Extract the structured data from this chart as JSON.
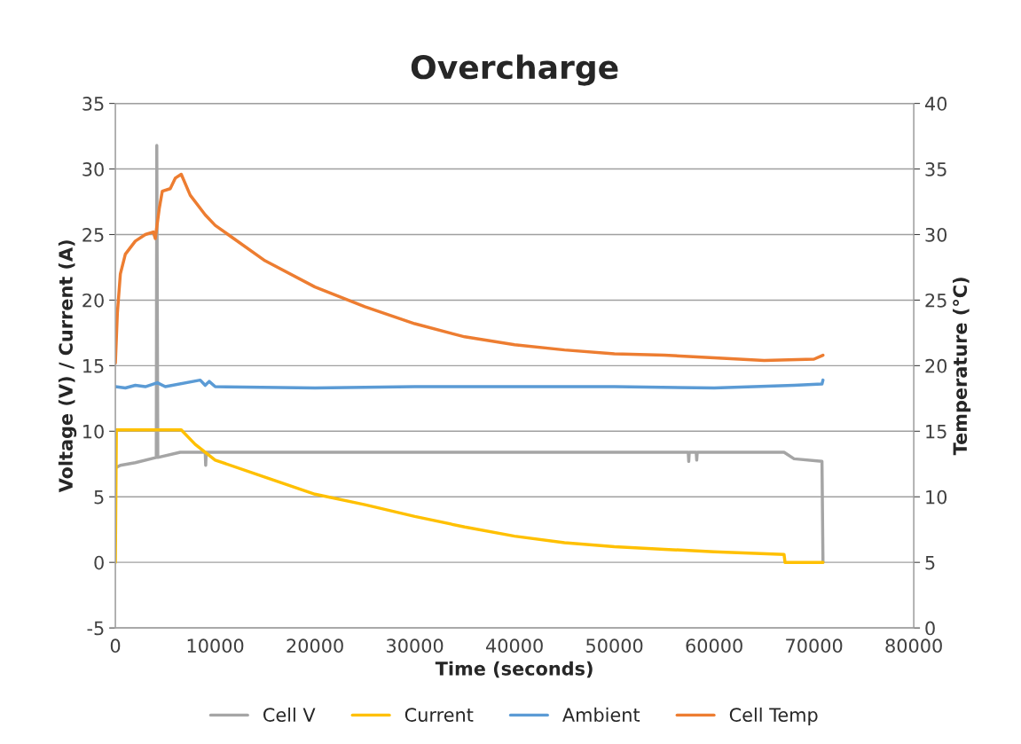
{
  "chart_data": {
    "type": "line",
    "title": "Overcharge",
    "xlabel": "Time (seconds)",
    "ylabel": "Voltage (V) / Current (A)",
    "y2label": "Temperature (°C)",
    "xlim": [
      0,
      80000
    ],
    "xticks": [
      0,
      10000,
      20000,
      30000,
      40000,
      50000,
      60000,
      70000,
      80000
    ],
    "ylim": [
      -5,
      35
    ],
    "yticks": [
      -5,
      0,
      5,
      10,
      15,
      20,
      25,
      30,
      35
    ],
    "y2lim": [
      0,
      40
    ],
    "y2ticks": [
      0,
      5,
      10,
      15,
      20,
      25,
      30,
      35,
      40
    ],
    "grid": "y",
    "legend": "bottom",
    "marker": "none",
    "line_style": "solid",
    "series": [
      {
        "name": "Cell V",
        "color": "#a5a5a5",
        "x": [
          0,
          500,
          2000,
          4100,
          4150,
          4250,
          6500,
          9000,
          9050,
          9100,
          57400,
          57450,
          57500,
          58200,
          58250,
          58300,
          67000,
          68000,
          70800,
          70900
        ],
        "values": [
          7.2,
          7.4,
          7.6,
          8.0,
          31.8,
          8.0,
          8.4,
          8.4,
          7.4,
          8.4,
          8.4,
          7.7,
          8.4,
          8.4,
          7.8,
          8.4,
          8.4,
          7.9,
          7.7,
          0
        ]
      },
      {
        "name": "Current",
        "color": "#ffc000",
        "x": [
          0,
          100,
          6600,
          8000,
          10000,
          15000,
          20000,
          25000,
          30000,
          35000,
          40000,
          45000,
          50000,
          55000,
          60000,
          67000,
          67100,
          70900
        ],
        "values": [
          0,
          10.1,
          10.1,
          9.0,
          7.8,
          6.5,
          5.2,
          4.4,
          3.5,
          2.7,
          2.0,
          1.5,
          1.2,
          1.0,
          0.8,
          0.6,
          0,
          0
        ]
      },
      {
        "name": "Ambient",
        "color": "#5b9bd5",
        "axis": "y2",
        "x": [
          0,
          1000,
          2000,
          3000,
          4200,
          5000,
          8500,
          9000,
          9400,
          10000,
          20000,
          30000,
          40000,
          50000,
          60000,
          68000,
          70800,
          70900
        ],
        "values": [
          18.4,
          18.3,
          18.5,
          18.4,
          18.7,
          18.4,
          18.9,
          18.5,
          18.8,
          18.4,
          18.3,
          18.4,
          18.4,
          18.4,
          18.3,
          18.5,
          18.6,
          18.9
        ]
      },
      {
        "name": "Cell Temp",
        "color": "#ed7d31",
        "axis": "y2",
        "x": [
          0,
          200,
          500,
          1000,
          2000,
          3000,
          3800,
          4000,
          4400,
          4700,
          5500,
          6000,
          6600,
          7500,
          9000,
          10000,
          15000,
          20000,
          25000,
          30000,
          35000,
          40000,
          45000,
          50000,
          55000,
          60000,
          65000,
          70000,
          70900
        ],
        "values": [
          20.2,
          24,
          27,
          28.5,
          29.5,
          30,
          30.2,
          29.7,
          32,
          33.3,
          33.5,
          34.3,
          34.6,
          33,
          31.5,
          30.7,
          28,
          26,
          24.5,
          23.2,
          22.2,
          21.6,
          21.2,
          20.9,
          20.8,
          20.6,
          20.4,
          20.5,
          20.8
        ]
      }
    ]
  }
}
